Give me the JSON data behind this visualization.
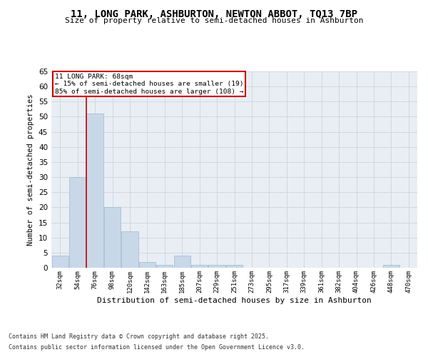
{
  "title_line1": "11, LONG PARK, ASHBURTON, NEWTON ABBOT, TQ13 7BP",
  "title_line2": "Size of property relative to semi-detached houses in Ashburton",
  "xlabel": "Distribution of semi-detached houses by size in Ashburton",
  "ylabel": "Number of semi-detached properties",
  "footnote_line1": "Contains HM Land Registry data © Crown copyright and database right 2025.",
  "footnote_line2": "Contains public sector information licensed under the Open Government Licence v3.0.",
  "annotation_title": "11 LONG PARK: 68sqm",
  "annotation_line1": "← 15% of semi-detached houses are smaller (19)",
  "annotation_line2": "85% of semi-detached houses are larger (108) →",
  "bar_labels": [
    "32sqm",
    "54sqm",
    "76sqm",
    "98sqm",
    "120sqm",
    "142sqm",
    "163sqm",
    "185sqm",
    "207sqm",
    "229sqm",
    "251sqm",
    "273sqm",
    "295sqm",
    "317sqm",
    "339sqm",
    "361sqm",
    "382sqm",
    "404sqm",
    "426sqm",
    "448sqm",
    "470sqm"
  ],
  "bar_values": [
    4,
    30,
    51,
    20,
    12,
    2,
    1,
    4,
    1,
    1,
    1,
    0,
    0,
    0,
    0,
    0,
    0,
    0,
    0,
    1,
    0
  ],
  "bar_color": "#c8d8e8",
  "bar_edge_color": "#a0b8cc",
  "grid_color": "#d0d8e0",
  "bg_color": "#e8eef4",
  "vline_x": 1.5,
  "vline_color": "#cc0000",
  "annotation_box_color": "#cc0000",
  "ylim": [
    0,
    65
  ],
  "yticks": [
    0,
    5,
    10,
    15,
    20,
    25,
    30,
    35,
    40,
    45,
    50,
    55,
    60,
    65
  ]
}
